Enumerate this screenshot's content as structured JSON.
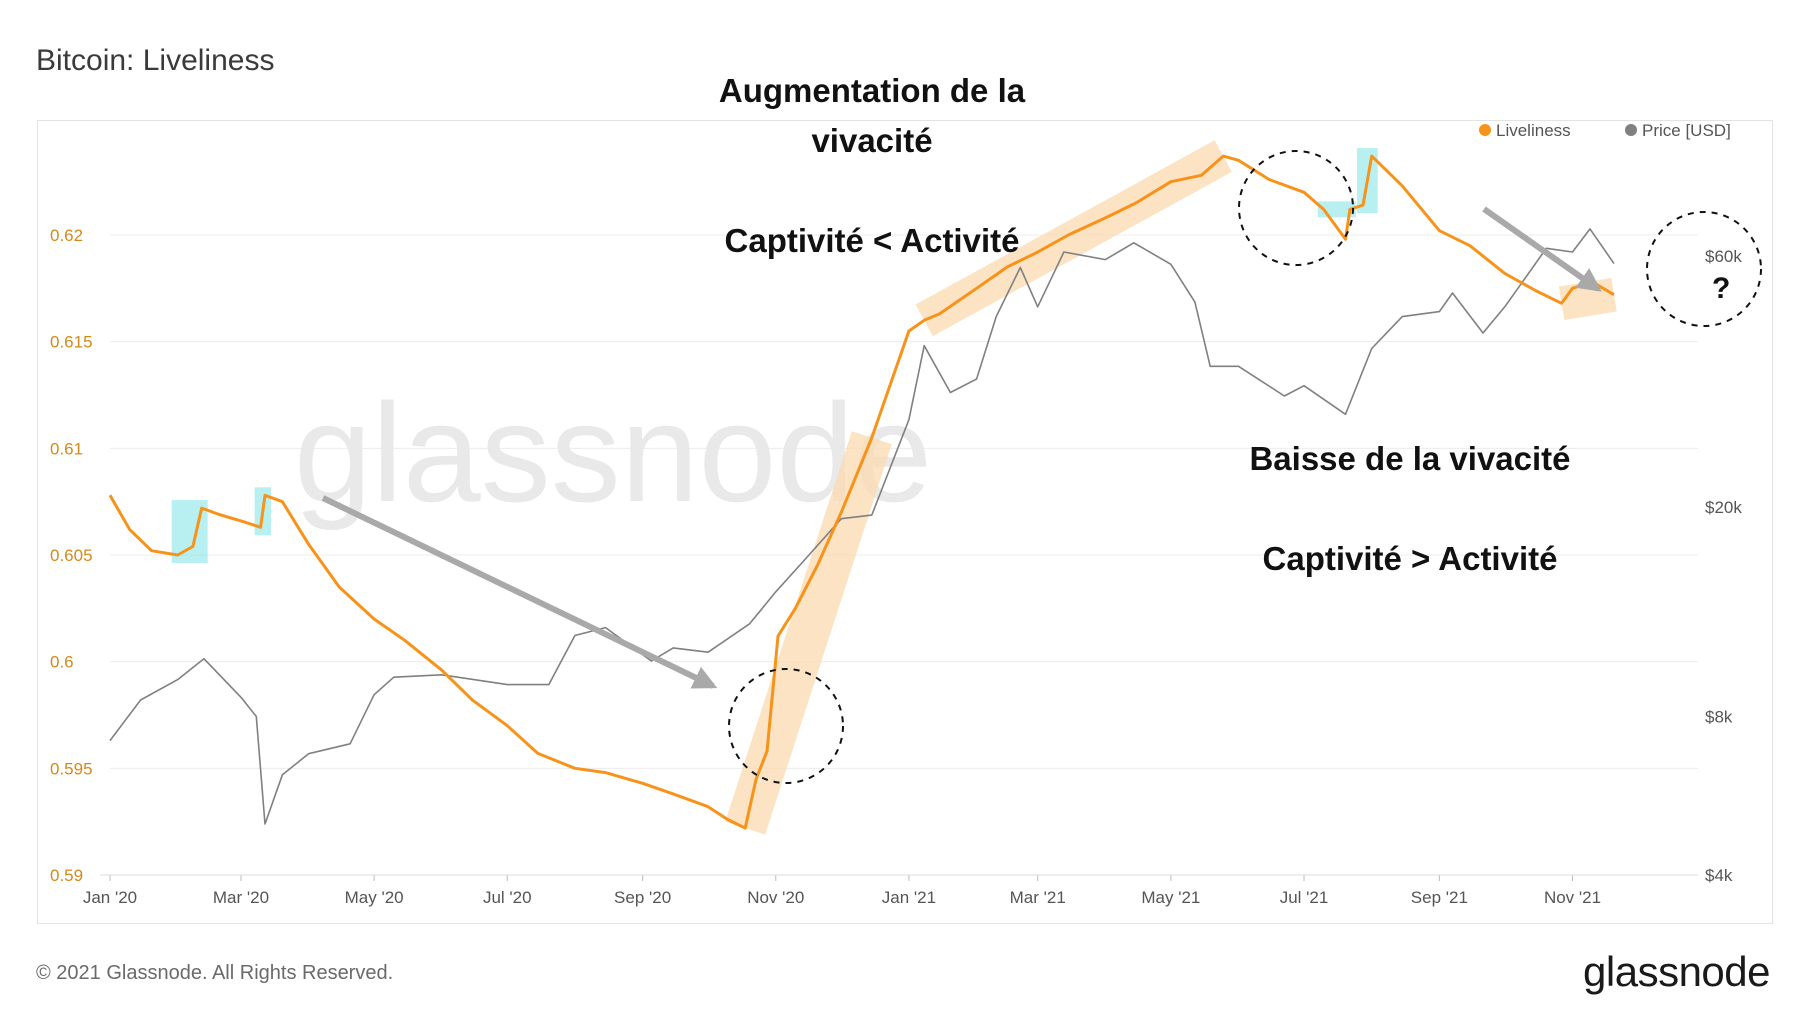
{
  "page": {
    "title": "Bitcoin: Liveliness",
    "copyright": "© 2021 Glassnode. All Rights Reserved.",
    "logo": "glassnode",
    "watermark": "glassnode"
  },
  "annotations": {
    "rise_title": "Augmentation de la",
    "rise_title_2": "vivacité",
    "rise_sub": "Captivité < Activité",
    "fall_title": "Baisse de la vivacité",
    "fall_sub": "Captivité > Activité",
    "question": "?"
  },
  "colors": {
    "liveliness": "#f7931a",
    "price": "#808080",
    "highlight_band": "#fbd9b0",
    "highlight_box": "#7de3e8",
    "arrow": "#a9a9a9",
    "left_axis_text": "#d4891c",
    "grid": "#ececec"
  },
  "chart_data": {
    "type": "line",
    "title": "Bitcoin: Liveliness",
    "legend_position": "top-right",
    "grid": true,
    "x_ticks": [
      "Jan '20",
      "Mar '20",
      "May '20",
      "Jul '20",
      "Sep '20",
      "Nov '20",
      "Jan '21",
      "Mar '21",
      "May '21",
      "Jul '21",
      "Sep '21",
      "Nov '21"
    ],
    "x_tick_dates": [
      "2020-01-01",
      "2020-03-01",
      "2020-05-01",
      "2020-07-01",
      "2020-09-01",
      "2020-11-01",
      "2021-01-01",
      "2021-03-01",
      "2021-05-01",
      "2021-07-01",
      "2021-09-01",
      "2021-11-01"
    ],
    "x_range": [
      "2020-01-01",
      "2021-12-01"
    ],
    "y_left": {
      "ticks": [
        0.59,
        0.595,
        0.6,
        0.605,
        0.61,
        0.615,
        0.62
      ],
      "tick_labels": [
        "0.59",
        "0.595",
        "0.6",
        "0.605",
        "0.61",
        "0.615",
        "0.62"
      ],
      "range": [
        0.59,
        0.6245
      ]
    },
    "y_right": {
      "scale": "log",
      "ticks": [
        4000,
        8000,
        20000,
        60000
      ],
      "tick_labels": [
        "$4k",
        "$8k",
        "$20k",
        "$60k"
      ],
      "range": [
        4000,
        100000
      ]
    },
    "series": [
      {
        "name": "Liveliness",
        "axis": "left",
        "x": [
          "2020-01-01",
          "2020-01-10",
          "2020-01-20",
          "2020-02-01",
          "2020-02-08",
          "2020-02-12",
          "2020-02-20",
          "2020-03-01",
          "2020-03-10",
          "2020-03-12",
          "2020-03-20",
          "2020-04-01",
          "2020-04-15",
          "2020-05-01",
          "2020-05-15",
          "2020-06-01",
          "2020-06-15",
          "2020-07-01",
          "2020-07-15",
          "2020-08-01",
          "2020-08-15",
          "2020-09-01",
          "2020-09-15",
          "2020-10-01",
          "2020-10-10",
          "2020-10-18",
          "2020-10-23",
          "2020-10-28",
          "2020-11-02",
          "2020-11-10",
          "2020-11-20",
          "2020-12-01",
          "2020-12-15",
          "2021-01-01",
          "2021-01-08",
          "2021-01-15",
          "2021-02-01",
          "2021-02-15",
          "2021-03-01",
          "2021-03-15",
          "2021-04-01",
          "2021-04-15",
          "2021-05-01",
          "2021-05-15",
          "2021-05-25",
          "2021-06-01",
          "2021-06-15",
          "2021-07-01",
          "2021-07-10",
          "2021-07-20",
          "2021-07-22",
          "2021-07-28",
          "2021-08-01",
          "2021-08-15",
          "2021-09-01",
          "2021-09-15",
          "2021-10-01",
          "2021-10-15",
          "2021-10-27",
          "2021-11-01",
          "2021-11-10",
          "2021-11-20"
        ],
        "values": [
          0.6078,
          0.6062,
          0.6052,
          0.605,
          0.6054,
          0.6072,
          0.6069,
          0.6066,
          0.6063,
          0.6078,
          0.6075,
          0.6055,
          0.6035,
          0.602,
          0.601,
          0.5996,
          0.5982,
          0.597,
          0.5957,
          0.595,
          0.5948,
          0.5943,
          0.5938,
          0.5932,
          0.5926,
          0.5922,
          0.5945,
          0.5958,
          0.6012,
          0.6025,
          0.6045,
          0.607,
          0.6105,
          0.6155,
          0.616,
          0.6163,
          0.6175,
          0.6185,
          0.6192,
          0.62,
          0.6208,
          0.6215,
          0.6225,
          0.6228,
          0.6237,
          0.6235,
          0.6226,
          0.622,
          0.6212,
          0.6198,
          0.6212,
          0.6214,
          0.6237,
          0.6223,
          0.6202,
          0.6195,
          0.6182,
          0.6174,
          0.6168,
          0.6175,
          0.6178,
          0.6172
        ]
      },
      {
        "name": "Price [USD]",
        "axis": "right",
        "x": [
          "2020-01-01",
          "2020-01-15",
          "2020-02-01",
          "2020-02-13",
          "2020-03-01",
          "2020-03-08",
          "2020-03-12",
          "2020-03-20",
          "2020-04-01",
          "2020-04-20",
          "2020-05-01",
          "2020-05-10",
          "2020-06-01",
          "2020-07-01",
          "2020-07-20",
          "2020-08-01",
          "2020-08-15",
          "2020-09-05",
          "2020-09-15",
          "2020-10-01",
          "2020-10-20",
          "2020-11-01",
          "2020-11-15",
          "2020-12-01",
          "2020-12-15",
          "2021-01-01",
          "2021-01-08",
          "2021-01-20",
          "2021-02-01",
          "2021-02-10",
          "2021-02-21",
          "2021-03-01",
          "2021-03-13",
          "2021-04-01",
          "2021-04-14",
          "2021-05-01",
          "2021-05-12",
          "2021-05-19",
          "2021-06-01",
          "2021-06-22",
          "2021-07-01",
          "2021-07-20",
          "2021-08-01",
          "2021-08-15",
          "2021-09-01",
          "2021-09-07",
          "2021-09-21",
          "2021-10-01",
          "2021-10-20",
          "2021-11-01",
          "2021-11-09",
          "2021-11-20"
        ],
        "values": [
          7200,
          8600,
          9400,
          10300,
          8700,
          8000,
          5000,
          6200,
          6800,
          7100,
          8800,
          9500,
          9600,
          9200,
          9200,
          11400,
          11800,
          10200,
          10800,
          10600,
          12000,
          13800,
          16000,
          19000,
          19300,
          29300,
          40500,
          33000,
          35000,
          46000,
          57000,
          48000,
          61000,
          59000,
          63500,
          57800,
          49000,
          37000,
          37000,
          32500,
          34000,
          30000,
          40000,
          46000,
          47000,
          51000,
          42800,
          48000,
          62000,
          61000,
          67500,
          58000
        ]
      }
    ]
  }
}
